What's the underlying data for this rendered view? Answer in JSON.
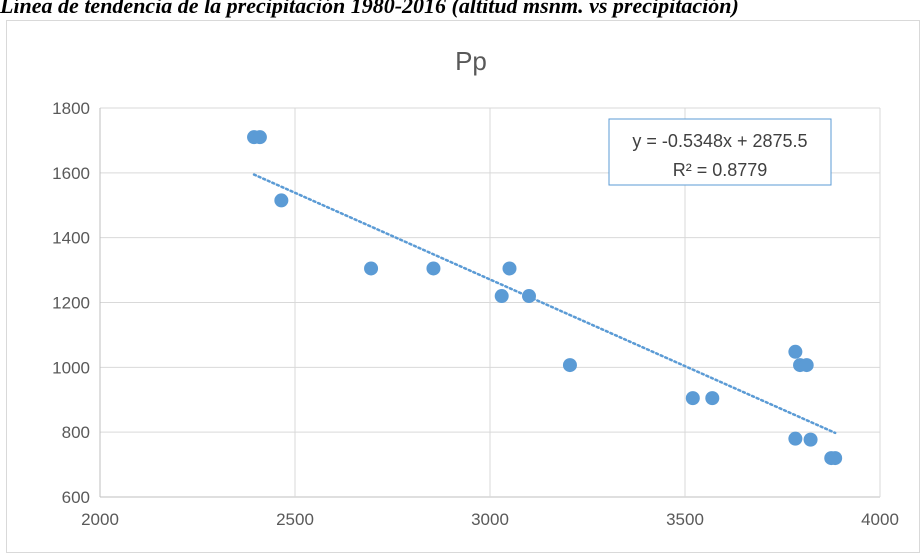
{
  "caption": "Línea de tendencia de la precipitación 1980-2016 (altitud msnm. vs precipitación)",
  "chart_data": {
    "type": "scatter",
    "title": "Pp",
    "xlabel": "",
    "ylabel": "",
    "xlim": [
      2000,
      4000
    ],
    "ylim": [
      600,
      1800
    ],
    "x_ticks": [
      2000,
      2500,
      3000,
      3500,
      4000
    ],
    "y_ticks": [
      600,
      800,
      1000,
      1200,
      1400,
      1600,
      1800
    ],
    "grid": true,
    "marker_color": "#5b9bd5",
    "points": [
      {
        "x": 2395,
        "y": 1710
      },
      {
        "x": 2410,
        "y": 1710
      },
      {
        "x": 2465,
        "y": 1515
      },
      {
        "x": 2695,
        "y": 1305
      },
      {
        "x": 2855,
        "y": 1305
      },
      {
        "x": 3030,
        "y": 1220
      },
      {
        "x": 3050,
        "y": 1305
      },
      {
        "x": 3100,
        "y": 1220
      },
      {
        "x": 3205,
        "y": 1007
      },
      {
        "x": 3520,
        "y": 905
      },
      {
        "x": 3570,
        "y": 905
      },
      {
        "x": 3783,
        "y": 1048
      },
      {
        "x": 3795,
        "y": 1007
      },
      {
        "x": 3812,
        "y": 1007
      },
      {
        "x": 3783,
        "y": 780
      },
      {
        "x": 3822,
        "y": 777
      },
      {
        "x": 3875,
        "y": 720
      },
      {
        "x": 3885,
        "y": 720
      }
    ],
    "trendline": {
      "slope": -0.5348,
      "intercept": 2875.5,
      "x_range": [
        2395,
        3885
      ],
      "equation_label": "y = -0.5348x + 2875.5",
      "r2_label": "R² = 0.8779"
    }
  }
}
